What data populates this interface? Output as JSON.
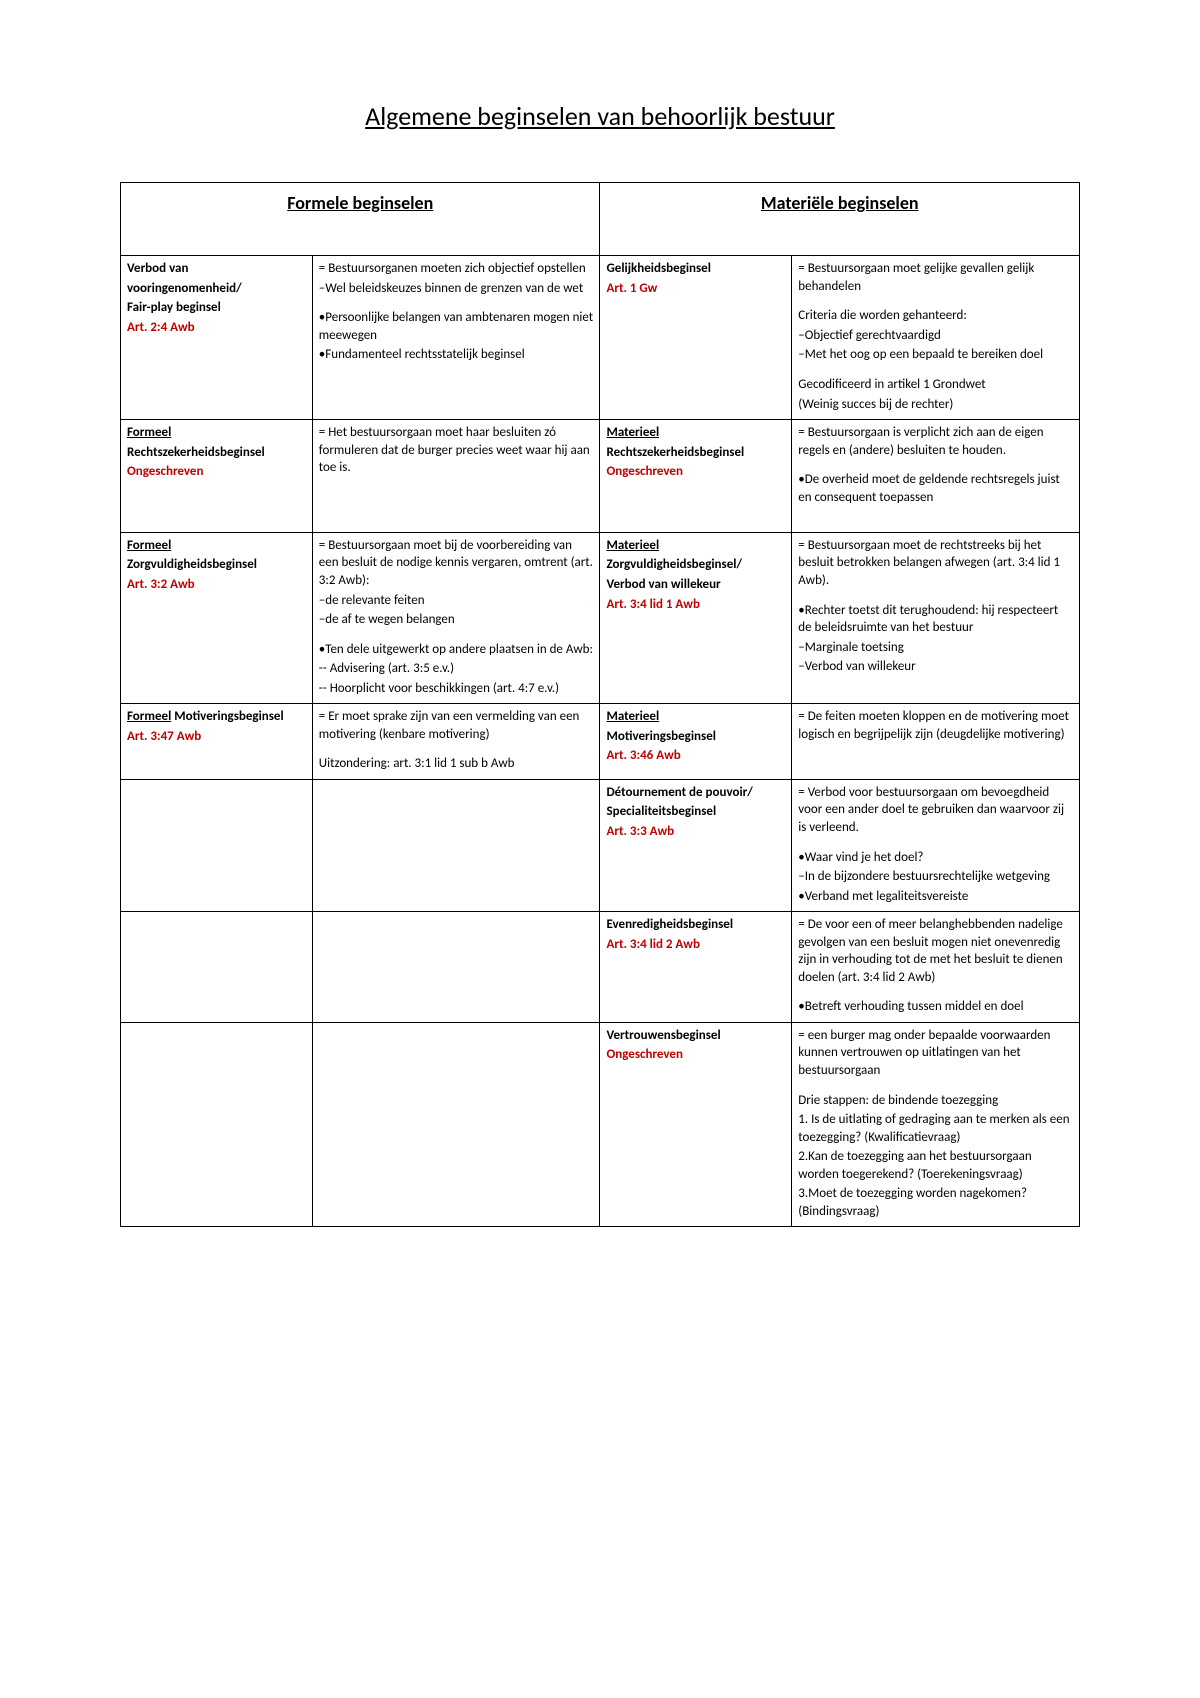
{
  "title": "Algemene beginselen van behoorlijk bestuur",
  "headers": {
    "left": "Formele beginselen",
    "right": "Materiële beginselen"
  },
  "rows": [
    {
      "l_name": [
        {
          "t": "Verbod van",
          "b": true
        },
        {
          "t": "vooringenomenheid/",
          "b": true
        },
        {
          "t": "Fair-play beginsel",
          "b": true
        },
        {
          "t": "Art. 2:4 Awb",
          "red": true
        }
      ],
      "l_desc": [
        {
          "t": "= Bestuursorganen moeten zich objectief opstellen"
        },
        {
          "t": "–Wel beleidskeuzes binnen de grenzen van de wet"
        },
        {
          "t": "•Persoonlijke belangen van ambtenaren mogen niet meewegen",
          "gap": true
        },
        {
          "t": "•Fundamenteel rechtsstatelijk beginsel"
        }
      ],
      "r_name": [
        {
          "t": "Gelijkheidsbeginsel",
          "b": true
        },
        {
          "t": "Art. 1 Gw",
          "red": true
        }
      ],
      "r_desc": [
        {
          "t": "= Bestuursorgaan moet gelijke gevallen gelijk behandelen"
        },
        {
          "t": "Criteria die worden gehanteerd:",
          "gap": true
        },
        {
          "t": "–Objectief gerechtvaardigd"
        },
        {
          "t": "–Met het oog op een bepaald te bereiken doel"
        },
        {
          "t": "Gecodificeerd in artikel 1 Grondwet",
          "gap": true
        },
        {
          "t": "(Weinig succes bij de rechter)"
        }
      ]
    },
    {
      "l_name": [
        {
          "t": "Formeel",
          "b": true,
          "u": true
        },
        {
          "t": "Rechtszekerheidsbeginsel",
          "b": true
        },
        {
          "t": "Ongeschreven",
          "red": true
        }
      ],
      "l_desc": [
        {
          "t": "= Het bestuursorgaan moet haar besluiten zó formuleren dat de burger precies weet waar hij aan toe is."
        }
      ],
      "r_name": [
        {
          "t": "Materieel",
          "b": true,
          "u": true
        },
        {
          "t": "Rechtszekerheidsbeginsel",
          "b": true
        },
        {
          "t": "Ongeschreven",
          "red": true
        }
      ],
      "r_desc": [
        {
          "t": "= Bestuursorgaan is verplicht zich aan de eigen regels en (andere) besluiten te houden."
        },
        {
          "t": "•De overheid moet de geldende rechtsregels juist en consequent toepassen",
          "gap": true
        },
        {
          "t": " "
        }
      ]
    },
    {
      "l_name": [
        {
          "t": "Formeel",
          "b": true,
          "u": true
        },
        {
          "t": "Zorgvuldigheidsbeginsel",
          "b": true
        },
        {
          "t": "Art. 3:2 Awb",
          "red": true
        }
      ],
      "l_desc": [
        {
          "t": "= Bestuursorgaan moet bij de voorbereiding van een besluit de nodige kennis vergaren, omtrent (art. 3:2 Awb):"
        },
        {
          "t": "–de relevante feiten"
        },
        {
          "t": "–de af te wegen belangen"
        },
        {
          "t": "•Ten dele uitgewerkt op andere plaatsen in de Awb:",
          "gap": true
        },
        {
          "t": "-- Advisering (art. 3:5 e.v.)"
        },
        {
          "t": "-- Hoorplicht voor beschikkingen (art. 4:7 e.v.)"
        }
      ],
      "r_name": [
        {
          "t": "Materieel",
          "b": true,
          "u": true
        },
        {
          "t": "Zorgvuldigheidsbeginsel/",
          "b": true
        },
        {
          "t": "Verbod van willekeur",
          "b": true
        },
        {
          "t": "Art. 3:4 lid 1 Awb",
          "red": true
        }
      ],
      "r_desc": [
        {
          "t": "= Bestuursorgaan moet de rechtstreeks bij het besluit betrokken belangen afwegen (art. 3:4 lid 1 Awb)."
        },
        {
          "t": "•Rechter toetst dit terughoudend: hij respecteert de beleidsruimte van het bestuur",
          "gap": true
        },
        {
          "t": "–Marginale toetsing"
        },
        {
          "t": "–Verbod van willekeur"
        }
      ]
    },
    {
      "l_name": [
        {
          "t": "Formeel Motiveringsbeginsel",
          "b": true,
          "partU": "Formeel"
        },
        {
          "t": "Art. 3:47 Awb",
          "red": true
        }
      ],
      "l_desc": [
        {
          "t": "= Er moet sprake zijn van een vermelding van een motivering (kenbare motivering)"
        },
        {
          "t": "Uitzondering: art. 3:1 lid 1 sub b Awb",
          "gap": true
        }
      ],
      "r_name": [
        {
          "t": "Materieel",
          "b": true,
          "u": true
        },
        {
          "t": "Motiveringsbeginsel",
          "b": true
        },
        {
          "t": "Art. 3:46 Awb",
          "red": true
        }
      ],
      "r_desc": [
        {
          "t": "= De feiten moeten kloppen en de motivering moet logisch en begrijpelijk zijn (deugdelijke motivering)"
        }
      ]
    },
    {
      "l_name": [],
      "l_desc": [],
      "r_name": [
        {
          "t": "Détournement de pouvoir/",
          "b": true
        },
        {
          "t": "Specialiteitsbeginsel",
          "b": true
        },
        {
          "t": "Art. 3:3 Awb",
          "red": true
        }
      ],
      "r_desc": [
        {
          "t": "= Verbod voor bestuursorgaan om bevoegdheid voor een ander doel te gebruiken dan waarvoor zij is verleend."
        },
        {
          "t": "•Waar vind je het doel?",
          "gap": true
        },
        {
          "t": "–In de bijzondere bestuursrechtelijke wetgeving"
        },
        {
          "t": "•Verband met legaliteitsvereiste"
        }
      ]
    },
    {
      "l_name": [],
      "l_desc": [],
      "r_name": [
        {
          "t": "Evenredigheidsbeginsel",
          "b": true
        },
        {
          "t": "Art. 3:4 lid 2 Awb",
          "red": true
        }
      ],
      "r_desc": [
        {
          "t": "= De voor een of meer belanghebbenden nadelige gevolgen van een besluit mogen niet onevenredig zijn in verhouding tot de met het besluit te dienen doelen (art. 3:4 lid 2 Awb)"
        },
        {
          "t": "•Betreft verhouding tussen middel en doel",
          "gap": true
        }
      ]
    },
    {
      "l_name": [],
      "l_desc": [],
      "r_name": [
        {
          "t": "Vertrouwensbeginsel",
          "b": true
        },
        {
          "t": "Ongeschreven",
          "red": true
        }
      ],
      "r_desc": [
        {
          "t": "= een burger mag onder bepaalde voorwaarden kunnen vertrouwen op uitlatingen van het bestuursorgaan"
        },
        {
          "t": "Drie stappen: de bindende toezegging",
          "gap": true
        },
        {
          "t": "1. Is de uitlating of gedraging aan te merken als een toezegging? (Kwalificatievraag)"
        },
        {
          "t": "2.Kan de toezegging aan het bestuursorgaan worden toegerekend? (Toerekeningsvraag)"
        },
        {
          "t": "3.Moet de toezegging worden nagekomen? (Bindingsvraag)"
        }
      ]
    }
  ]
}
